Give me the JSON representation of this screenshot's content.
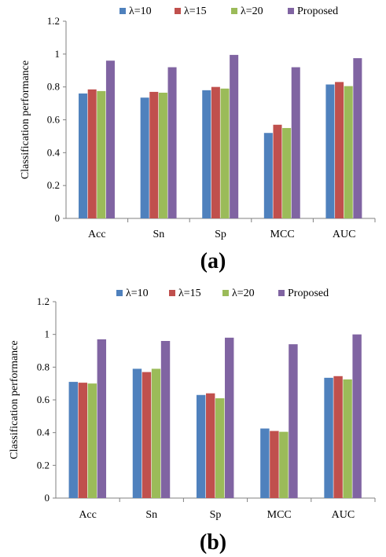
{
  "panels": [
    {
      "label": "(a)",
      "ylabel": "Classification performance",
      "yticks": [
        "0",
        "0.2",
        "0.4",
        "0.6",
        "0.8",
        "1",
        "1.2"
      ]
    },
    {
      "label": "(b)",
      "ylabel": "Classification performance",
      "yticks": [
        "0",
        "0.2",
        "0.4",
        "0.6",
        "0.8",
        "1",
        "1.2"
      ]
    }
  ],
  "legend": [
    "λ=10",
    "λ=15",
    "λ=20",
    "Proposed"
  ],
  "colors": [
    "#4f81bd",
    "#c0504d",
    "#9bbb59",
    "#8064a2"
  ],
  "chart_data": [
    {
      "type": "bar",
      "categories": [
        "Acc",
        "Sn",
        "Sp",
        "MCC",
        "AUC"
      ],
      "series": [
        {
          "name": "λ=10",
          "values": [
            0.76,
            0.735,
            0.78,
            0.52,
            0.815
          ]
        },
        {
          "name": "λ=15",
          "values": [
            0.785,
            0.77,
            0.8,
            0.57,
            0.83
          ]
        },
        {
          "name": "λ=20",
          "values": [
            0.775,
            0.765,
            0.79,
            0.55,
            0.805
          ]
        },
        {
          "name": "Proposed",
          "values": [
            0.96,
            0.92,
            0.995,
            0.92,
            0.975
          ]
        }
      ],
      "ylabel": "Classification performance",
      "ylim": [
        0,
        1.2
      ],
      "grid": false,
      "legend_position": "top"
    },
    {
      "type": "bar",
      "categories": [
        "Acc",
        "Sn",
        "Sp",
        "MCC",
        "AUC"
      ],
      "series": [
        {
          "name": "λ=10",
          "values": [
            0.71,
            0.79,
            0.63,
            0.425,
            0.735
          ]
        },
        {
          "name": "λ=15",
          "values": [
            0.705,
            0.77,
            0.64,
            0.41,
            0.745
          ]
        },
        {
          "name": "λ=20",
          "values": [
            0.7,
            0.79,
            0.61,
            0.405,
            0.725
          ]
        },
        {
          "name": "Proposed",
          "values": [
            0.97,
            0.96,
            0.98,
            0.94,
            1.0
          ]
        }
      ],
      "ylabel": "Classification performance",
      "ylim": [
        0,
        1.2
      ],
      "grid": false,
      "legend_position": "top"
    }
  ]
}
